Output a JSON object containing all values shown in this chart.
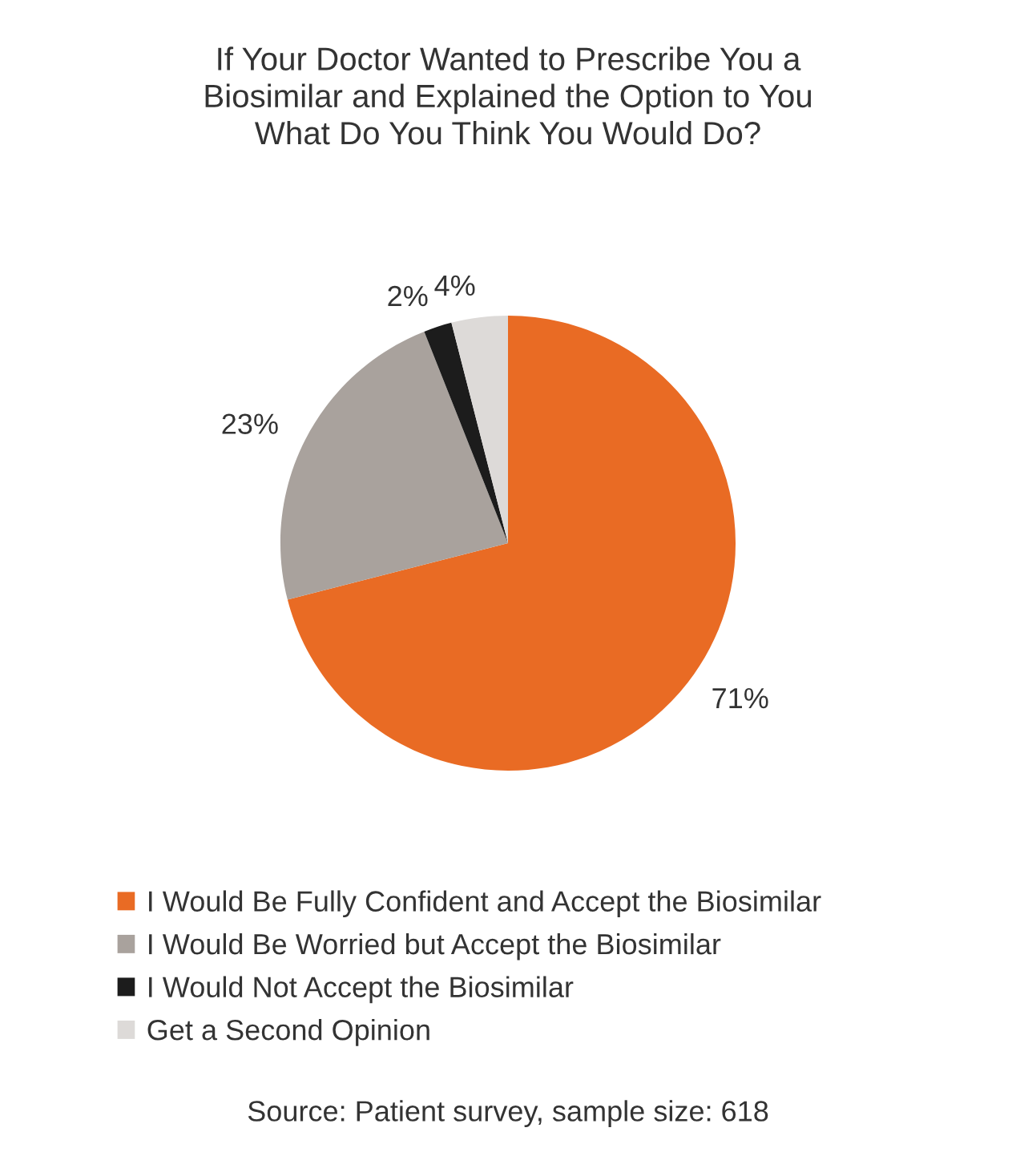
{
  "chart_data": {
    "type": "pie",
    "title": "If Your Doctor Wanted to Prescribe You a\nBiosimilar and Explained the Option to You\nWhat Do You Think You Would Do?",
    "categories": [
      "I Would Be Fully Confident and Accept the Biosimilar",
      "I Would Be Worried but Accept the Biosimilar",
      "I Would Not Accept the Biosimilar",
      "Get a Second Opinion"
    ],
    "values": [
      71,
      23,
      2,
      4
    ],
    "colors": [
      "#e96b24",
      "#a9a29d",
      "#1c1c1c",
      "#dddad8"
    ],
    "value_labels": [
      "71%",
      "23%",
      "2%",
      "4%"
    ],
    "legend": "bottom",
    "annotations": [
      "Source: Patient survey, sample size: 618"
    ]
  }
}
